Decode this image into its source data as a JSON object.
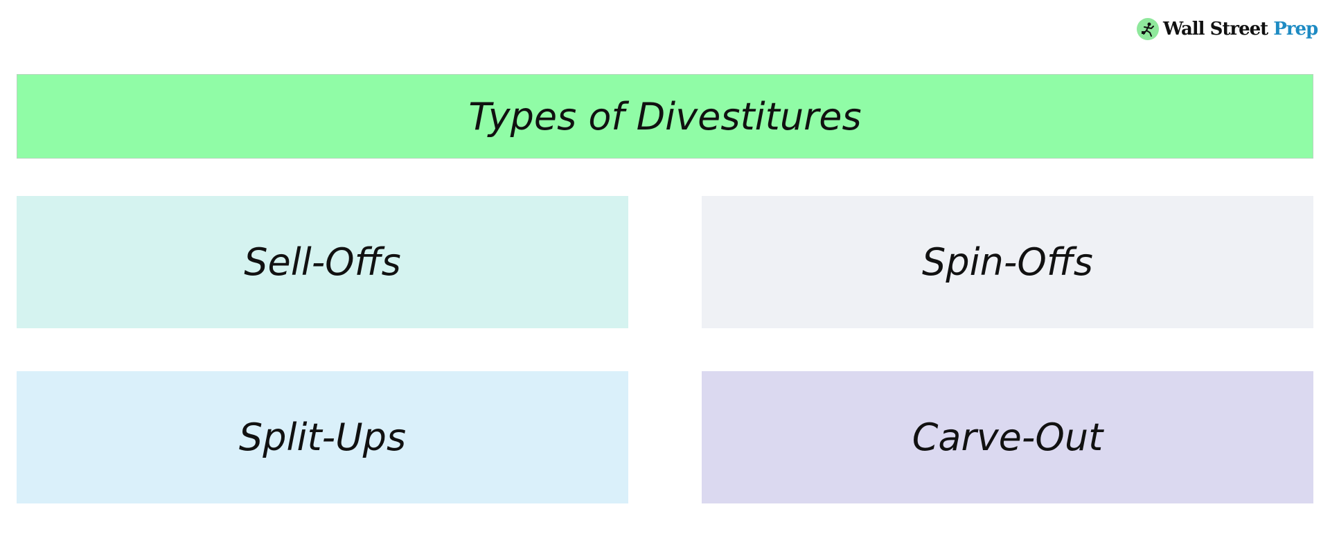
{
  "logo": {
    "text_main": "Wall Street",
    "text_accent": "Prep",
    "icon": "running-businessman-icon",
    "accent_color": "#1e8bc3",
    "badge_color": "#8fe89c"
  },
  "title": "Types of Divestitures",
  "title_color": "#90fca6",
  "types": [
    {
      "label": "Sell-Offs",
      "color": "#d5f3f0"
    },
    {
      "label": "Spin-Offs",
      "color": "#eff1f5"
    },
    {
      "label": "Split-Ups",
      "color": "#daf0fa"
    },
    {
      "label": "Carve-Out",
      "color": "#dbd9f0"
    }
  ]
}
